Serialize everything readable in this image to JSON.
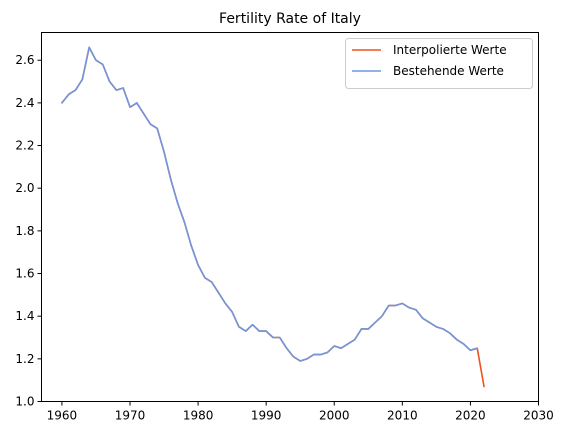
{
  "chart_data": {
    "type": "line",
    "title": "Fertility Rate of Italy",
    "xlabel": "",
    "ylabel": "",
    "xlim": [
      1957,
      2030
    ],
    "ylim": [
      1.0,
      2.73
    ],
    "xticks": [
      1960,
      1970,
      1980,
      1990,
      2000,
      2010,
      2020,
      2030
    ],
    "yticks": [
      1.0,
      1.2,
      1.4,
      1.6,
      1.8,
      2.0,
      2.2,
      2.4,
      2.6
    ],
    "grid": false,
    "legend": "top-right",
    "series": [
      {
        "name": "Interpolierte Werte",
        "color": "#f0521e",
        "x": [
          1960,
          1961,
          1962,
          1963,
          1964,
          1965,
          1966,
          1967,
          1968,
          1969,
          1970,
          1971,
          1972,
          1973,
          1974,
          1975,
          1976,
          1977,
          1978,
          1979,
          1980,
          1981,
          1982,
          1983,
          1984,
          1985,
          1986,
          1987,
          1988,
          1989,
          1990,
          1991,
          1992,
          1993,
          1994,
          1995,
          1996,
          1997,
          1998,
          1999,
          2000,
          2001,
          2002,
          2003,
          2004,
          2005,
          2006,
          2007,
          2008,
          2009,
          2010,
          2011,
          2012,
          2013,
          2014,
          2015,
          2016,
          2017,
          2018,
          2019,
          2020,
          2021,
          2022
        ],
        "y": [
          2.4,
          2.44,
          2.46,
          2.51,
          2.66,
          2.6,
          2.58,
          2.5,
          2.46,
          2.47,
          2.38,
          2.4,
          2.35,
          2.3,
          2.28,
          2.17,
          2.04,
          1.93,
          1.84,
          1.73,
          1.64,
          1.58,
          1.56,
          1.51,
          1.46,
          1.42,
          1.35,
          1.33,
          1.36,
          1.33,
          1.33,
          1.3,
          1.3,
          1.25,
          1.21,
          1.19,
          1.2,
          1.22,
          1.22,
          1.23,
          1.26,
          1.25,
          1.27,
          1.29,
          1.34,
          1.34,
          1.37,
          1.4,
          1.45,
          1.45,
          1.46,
          1.44,
          1.43,
          1.39,
          1.37,
          1.35,
          1.34,
          1.32,
          1.29,
          1.27,
          1.24,
          1.25,
          1.07
        ]
      },
      {
        "name": "Bestehende Werte",
        "color": "#6f97e0",
        "x": [
          1960,
          1961,
          1962,
          1963,
          1964,
          1965,
          1966,
          1967,
          1968,
          1969,
          1970,
          1971,
          1972,
          1973,
          1974,
          1975,
          1976,
          1977,
          1978,
          1979,
          1980,
          1981,
          1982,
          1983,
          1984,
          1985,
          1986,
          1987,
          1988,
          1989,
          1990,
          1991,
          1992,
          1993,
          1994,
          1995,
          1996,
          1997,
          1998,
          1999,
          2000,
          2001,
          2002,
          2003,
          2004,
          2005,
          2006,
          2007,
          2008,
          2009,
          2010,
          2011,
          2012,
          2013,
          2014,
          2015,
          2016,
          2017,
          2018,
          2019,
          2020,
          2021
        ],
        "y": [
          2.4,
          2.44,
          2.46,
          2.51,
          2.66,
          2.6,
          2.58,
          2.5,
          2.46,
          2.47,
          2.38,
          2.4,
          2.35,
          2.3,
          2.28,
          2.17,
          2.04,
          1.93,
          1.84,
          1.73,
          1.64,
          1.58,
          1.56,
          1.51,
          1.46,
          1.42,
          1.35,
          1.33,
          1.36,
          1.33,
          1.33,
          1.3,
          1.3,
          1.25,
          1.21,
          1.19,
          1.2,
          1.22,
          1.22,
          1.23,
          1.26,
          1.25,
          1.27,
          1.29,
          1.34,
          1.34,
          1.37,
          1.4,
          1.45,
          1.45,
          1.46,
          1.44,
          1.43,
          1.39,
          1.37,
          1.35,
          1.34,
          1.32,
          1.29,
          1.27,
          1.24,
          1.25
        ]
      }
    ]
  }
}
